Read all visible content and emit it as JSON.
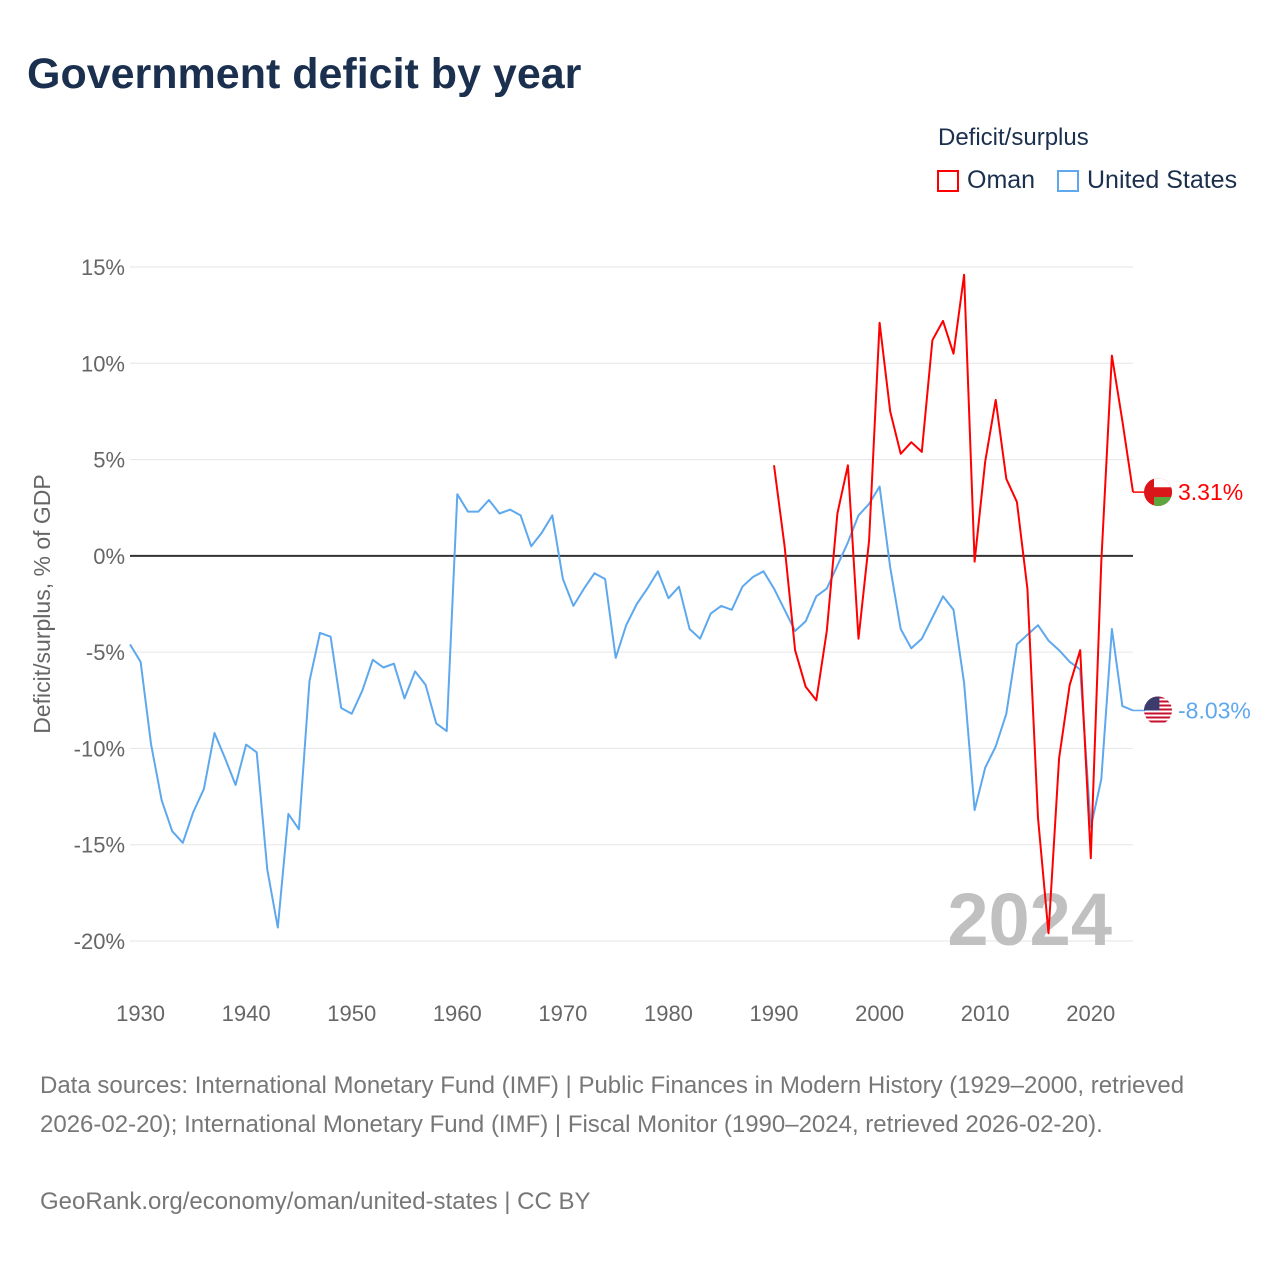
{
  "title": "Government deficit by year",
  "legend": {
    "title": "Deficit/surplus",
    "items": [
      {
        "label": "Oman",
        "color": "#ff0000"
      },
      {
        "label": "United States",
        "color": "#5ea8ee"
      }
    ]
  },
  "chart_data": {
    "type": "line",
    "title": "Government deficit by year",
    "xlabel": "",
    "ylabel": "Deficit/surplus, % of GDP",
    "xlim": [
      1929,
      2024
    ],
    "ylim": [
      -20,
      15
    ],
    "x_ticks": [
      1930,
      1940,
      1950,
      1960,
      1970,
      1980,
      1990,
      2000,
      2010,
      2020
    ],
    "x_tick_labels": [
      "1930",
      "1940",
      "1950",
      "1960",
      "1970",
      "1980",
      "1990",
      "2000",
      "2010",
      "2020"
    ],
    "y_ticks": [
      15,
      10,
      5,
      0,
      -5,
      -10,
      -15,
      -20
    ],
    "y_tick_labels": [
      "15%",
      "10%",
      "5%",
      "0%",
      "-5%",
      "-10%",
      "-15%",
      "-20%"
    ],
    "grid": true,
    "legend_position": "top-right",
    "year_label": "2024",
    "series": [
      {
        "name": "Oman",
        "color": "#ff0000",
        "end_label": "3.31%",
        "start_year": 1990,
        "values": [
          4.7,
          0.5,
          -4.9,
          -6.8,
          -7.5,
          -3.9,
          2.2,
          4.7,
          -4.3,
          0.8,
          12.1,
          7.5,
          5.3,
          5.9,
          5.4,
          11.2,
          12.2,
          10.5,
          14.6,
          -0.3,
          4.9,
          8.1,
          4.0,
          2.8,
          -1.7,
          -13.6,
          -19.6,
          -10.5,
          -6.7,
          -4.9,
          -15.7,
          -0.3,
          10.4,
          7.0,
          3.31
        ]
      },
      {
        "name": "United States",
        "color": "#5ea8ee",
        "end_label": "-8.03%",
        "start_year": 1929,
        "values": [
          -4.6,
          -5.5,
          -9.8,
          -12.7,
          -14.3,
          -14.9,
          -13.3,
          -12.1,
          -9.2,
          -10.5,
          -11.9,
          -9.8,
          -10.2,
          -16.3,
          -19.3,
          -13.4,
          -14.2,
          -6.5,
          -4.0,
          -4.2,
          -7.9,
          -8.2,
          -7.0,
          -5.4,
          -5.8,
          -5.6,
          -7.4,
          -6.0,
          -6.7,
          -8.7,
          -9.1,
          3.2,
          2.3,
          2.3,
          2.9,
          2.2,
          2.4,
          2.1,
          0.5,
          1.2,
          2.1,
          -1.2,
          -2.6,
          -1.7,
          -0.9,
          -1.2,
          -5.3,
          -3.6,
          -2.5,
          -1.7,
          -0.8,
          -2.2,
          -1.6,
          -3.8,
          -4.3,
          -3.0,
          -2.6,
          -2.8,
          -1.6,
          -1.1,
          -0.8,
          -1.7,
          -2.8,
          -3.9,
          -3.4,
          -2.1,
          -1.7,
          -0.5,
          0.7,
          2.1,
          2.7,
          3.6,
          -0.6,
          -3.8,
          -4.8,
          -4.3,
          -3.2,
          -2.1,
          -2.8,
          -6.6,
          -13.2,
          -11.0,
          -9.9,
          -8.2,
          -4.6,
          -4.1,
          -3.6,
          -4.4,
          -4.9,
          -5.5,
          -5.9,
          -14.1,
          -11.6,
          -3.8,
          -7.8,
          -8.03
        ]
      }
    ]
  },
  "footer": {
    "sources": "Data sources: International Monetary Fund (IMF) | Public Finances in Modern History (1929–2000, retrieved 2026-02-20); International Monetary Fund (IMF) | Fiscal Monitor (1990–2024, retrieved 2026-02-20).",
    "credit": "GeoRank.org/economy/oman/united-states | CC BY"
  }
}
